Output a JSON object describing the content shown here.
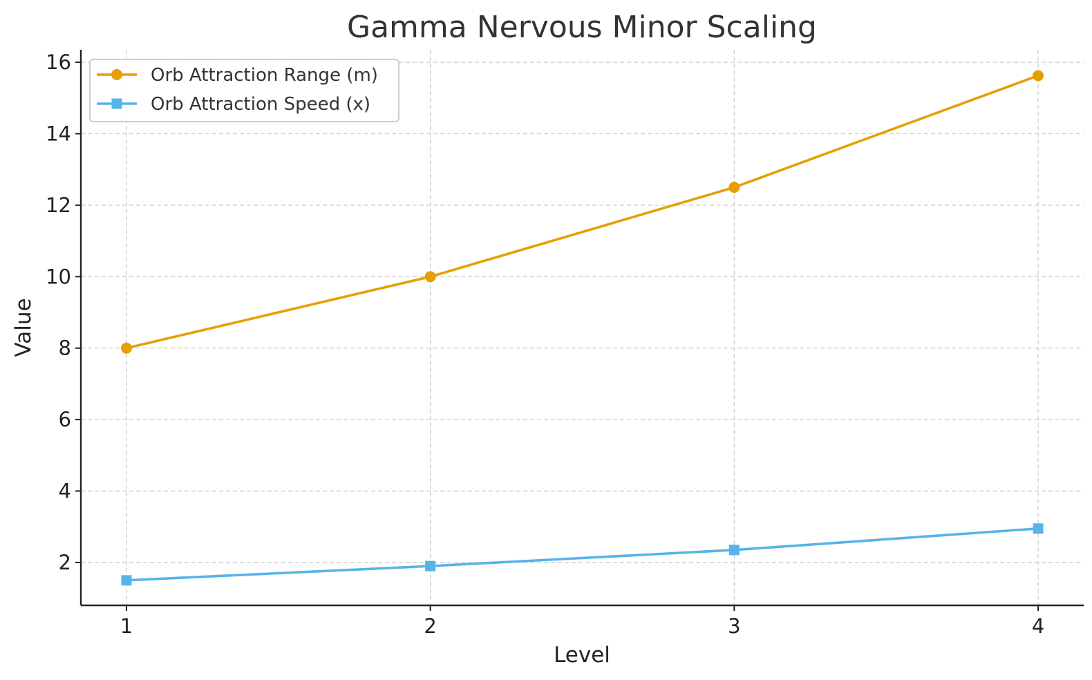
{
  "chart_data": {
    "type": "line",
    "title": "Gamma Nervous Minor Scaling",
    "xlabel": "Level",
    "ylabel": "Value",
    "x": [
      1,
      2,
      3,
      4
    ],
    "x_ticks": [
      "1",
      "2",
      "3",
      "4"
    ],
    "y_ticks": [
      "2",
      "4",
      "6",
      "8",
      "10",
      "12",
      "14",
      "16"
    ],
    "y_tick_values": [
      2,
      4,
      6,
      8,
      10,
      12,
      14,
      16
    ],
    "xlim": [
      0.85,
      4.15
    ],
    "ylim": [
      0.8,
      16.35
    ],
    "grid": true,
    "legend_position": "top-left",
    "series": [
      {
        "name": "Orb Attraction Range (m)",
        "values": [
          8.0,
          10.0,
          12.5,
          15.625
        ],
        "color": "#E69F00",
        "marker": "circle"
      },
      {
        "name": "Orb Attraction Speed (x)",
        "values": [
          1.5,
          1.9,
          2.35,
          2.95
        ],
        "color": "#56B4E9",
        "marker": "square"
      }
    ]
  }
}
